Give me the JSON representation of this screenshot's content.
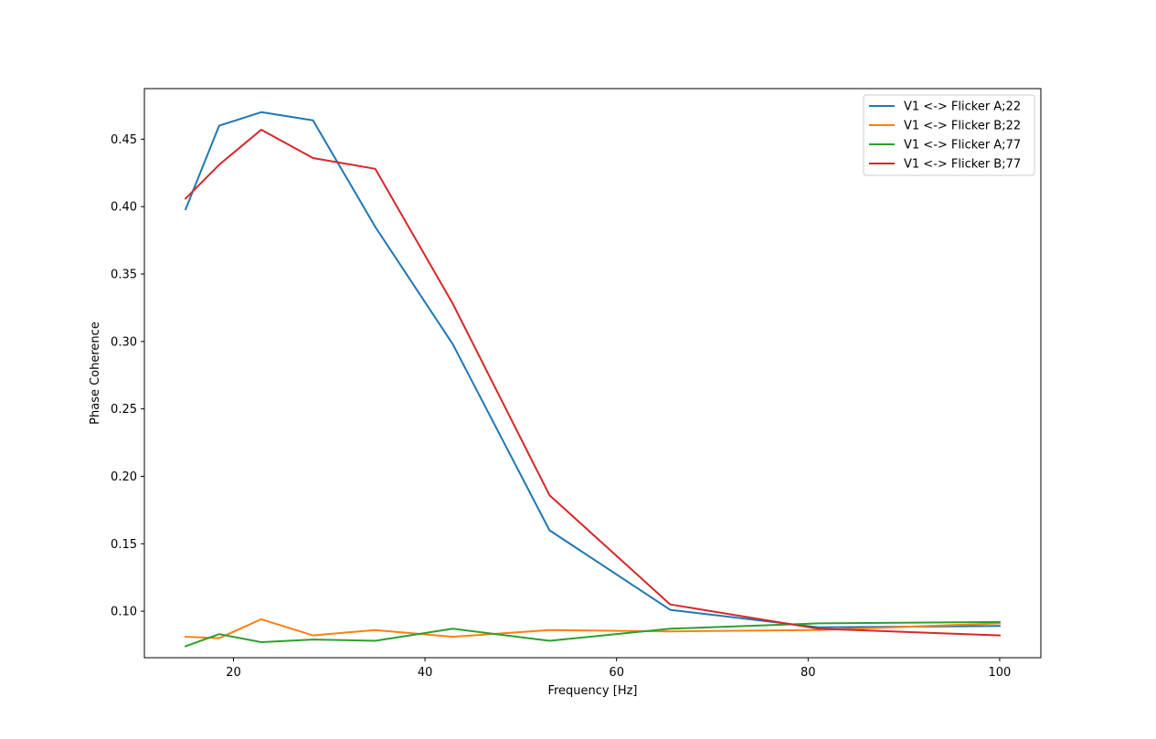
{
  "chart_data": {
    "type": "line",
    "title": "",
    "xlabel": "Frequency [Hz]",
    "ylabel": "Phase Coherence",
    "xlim": [
      10.7,
      104.3
    ],
    "ylim": [
      0.0655,
      0.4875
    ],
    "x_ticks": [
      20,
      40,
      60,
      80,
      100
    ],
    "x_tick_labels": [
      "20",
      "40",
      "60",
      "80",
      "100"
    ],
    "y_ticks": [
      0.1,
      0.15,
      0.2,
      0.25,
      0.3,
      0.35,
      0.4,
      0.45
    ],
    "y_tick_labels": [
      "0.10",
      "0.15",
      "0.20",
      "0.25",
      "0.30",
      "0.35",
      "0.40",
      "0.45"
    ],
    "grid": false,
    "legend": {
      "placement": "top-right"
    },
    "x": [
      15.0,
      18.5,
      22.9,
      28.3,
      34.8,
      42.9,
      53.0,
      65.6,
      81.1,
      100.0
    ],
    "series": [
      {
        "name": "V1 <-> Flicker A;22",
        "color": "#1f77b4",
        "values": [
          0.398,
          0.46,
          0.47,
          0.464,
          0.385,
          0.298,
          0.16,
          0.101,
          0.088,
          0.089
        ]
      },
      {
        "name": "V1 <-> Flicker B;22",
        "color": "#ff7f0e",
        "values": [
          0.081,
          0.08,
          0.094,
          0.082,
          0.086,
          0.081,
          0.086,
          0.085,
          0.086,
          0.091
        ]
      },
      {
        "name": "V1 <-> Flicker A;77",
        "color": "#2ca02c",
        "values": [
          0.074,
          0.083,
          0.077,
          0.079,
          0.078,
          0.087,
          0.078,
          0.087,
          0.091,
          0.092
        ]
      },
      {
        "name": "V1 <-> Flicker B;77",
        "color": "#d62728",
        "values": [
          0.406,
          0.431,
          0.457,
          0.436,
          0.428,
          0.328,
          0.186,
          0.105,
          0.087,
          0.082
        ]
      }
    ]
  }
}
